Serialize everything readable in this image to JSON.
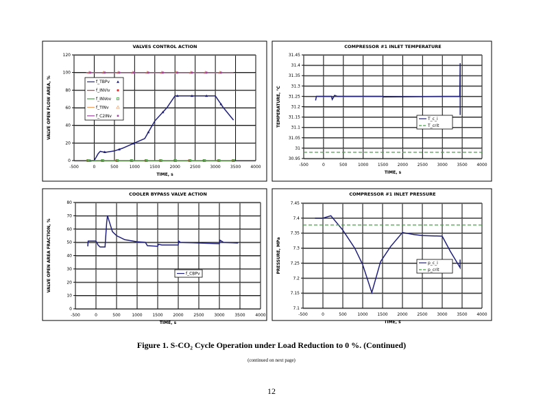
{
  "chart_data": [
    {
      "type": "line",
      "title": "VALVES CONTROL ACTION",
      "xlabel": "TIME, s",
      "ylabel": "VALVE OPEN FLOW AREA, %",
      "xlim": [
        -500,
        4000
      ],
      "xticks": [
        -500,
        0,
        500,
        1000,
        1500,
        2000,
        2500,
        3000,
        3500,
        4000
      ],
      "ylim": [
        0,
        120
      ],
      "yticks": [
        0,
        20,
        40,
        60,
        80,
        100,
        120
      ],
      "grid": true,
      "legend": "left",
      "series": [
        {
          "name": "f_TBPv",
          "color": "#1f1f7a",
          "marker": "triangle",
          "x": [
            -100,
            0,
            100,
            150,
            200,
            300,
            500,
            700,
            1000,
            1250,
            1400,
            1500,
            1800,
            2000,
            2100,
            3000,
            3200,
            3450
          ],
          "y": [
            0,
            0,
            8,
            10.5,
            10,
            9.5,
            11,
            14,
            20,
            25,
            37,
            45,
            60,
            73.5,
            73.5,
            73.5,
            60,
            46
          ]
        },
        {
          "name": "f_INViv",
          "color": "#e03030",
          "marker": "star",
          "x": [
            -200,
            3450
          ],
          "y": [
            0,
            0
          ]
        },
        {
          "name": "f_INVov",
          "color": "#40a040",
          "marker": "square",
          "x": [
            -200,
            3450
          ],
          "y": [
            0,
            0
          ]
        },
        {
          "name": "f_TINv",
          "color": "#f0a060",
          "marker": "triangle-open",
          "x": [
            -200,
            3450
          ],
          "y": [
            100,
            100
          ]
        },
        {
          "name": "f_C2INv",
          "color": "#a040a0",
          "marker": "dot",
          "x": [
            -200,
            3450
          ],
          "y": [
            100,
            100
          ]
        }
      ]
    },
    {
      "type": "line",
      "title": "COMPRESSOR #1 INLET TEMPERATURE",
      "xlabel": "TIME, s",
      "ylabel": "TEMPERATURE, °C",
      "xlim": [
        -500,
        4000
      ],
      "xticks": [
        -500,
        0,
        500,
        1000,
        1500,
        2000,
        2500,
        3000,
        3500,
        4000
      ],
      "ylim": [
        30.95,
        31.45
      ],
      "yticks": [
        30.95,
        31,
        31.05,
        31.1,
        31.15,
        31.2,
        31.25,
        31.3,
        31.35,
        31.4,
        31.45
      ],
      "grid": true,
      "legend": "right",
      "series": [
        {
          "name": "T_c_i",
          "color": "#1f1f7a",
          "dash": false,
          "x": [
            -200,
            -180,
            200,
            220,
            280,
            350,
            1500,
            1510,
            3440,
            3450,
            3450
          ],
          "y": [
            31.23,
            31.25,
            31.25,
            31.235,
            31.255,
            31.25,
            31.25,
            31.247,
            31.25,
            31.41,
            31.16
          ]
        },
        {
          "name": "T_crit",
          "color": "#40a040",
          "dash": true,
          "x": [
            -500,
            4000
          ],
          "y": [
            30.98,
            30.98
          ]
        }
      ]
    },
    {
      "type": "line",
      "title": "COOLER BYPASS VALVE ACTION",
      "xlabel": "TIME, s",
      "ylabel": "VALVE OPEN AREA FRACTION, %",
      "xlim": [
        -500,
        4000
      ],
      "xticks": [
        -500,
        0,
        500,
        1000,
        1500,
        2000,
        2500,
        3000,
        3500,
        4000
      ],
      "ylim": [
        0,
        80
      ],
      "yticks": [
        0,
        10,
        20,
        30,
        40,
        50,
        60,
        70,
        80
      ],
      "grid": true,
      "legend": "center-right",
      "series": [
        {
          "name": "f_CBPv",
          "color": "#1f1f7a",
          "dash": false,
          "x": [
            -200,
            -190,
            0,
            50,
            100,
            220,
            260,
            280,
            300,
            400,
            500,
            700,
            1000,
            1200,
            1250,
            1500,
            1520,
            1600,
            2000,
            2010,
            2050,
            3000,
            3020,
            3100,
            3450
          ],
          "y": [
            47,
            51,
            51,
            48,
            46.5,
            46.5,
            65,
            70,
            68,
            58,
            55,
            52,
            50.5,
            50,
            47.5,
            47,
            48.5,
            48,
            48,
            51,
            50,
            49,
            51.5,
            50,
            49.5
          ]
        }
      ]
    },
    {
      "type": "line",
      "title": "COMPRESSOR #1 INLET PRESSURE",
      "xlabel": "TIME, s",
      "ylabel": "PRESSURE, MPa",
      "xlim": [
        -500,
        4000
      ],
      "xticks": [
        -500,
        0,
        500,
        1000,
        1500,
        2000,
        2500,
        3000,
        3500,
        4000
      ],
      "ylim": [
        7.1,
        7.45
      ],
      "yticks": [
        7.1,
        7.15,
        7.2,
        7.25,
        7.3,
        7.35,
        7.4,
        7.45
      ],
      "grid": true,
      "legend": "right",
      "series": [
        {
          "name": "p_c_i",
          "color": "#1f1f7a",
          "dash": false,
          "x": [
            -200,
            0,
            200,
            500,
            800,
            1000,
            1230,
            1450,
            1700,
            2000,
            2300,
            2500,
            3000,
            3200,
            3450,
            3450
          ],
          "y": [
            7.4,
            7.4,
            7.408,
            7.36,
            7.3,
            7.245,
            7.152,
            7.255,
            7.305,
            7.352,
            7.345,
            7.342,
            7.34,
            7.29,
            7.235,
            7.262
          ]
        },
        {
          "name": "p_crit",
          "color": "#40a040",
          "dash": true,
          "x": [
            -500,
            4000
          ],
          "y": [
            7.377,
            7.377
          ]
        }
      ]
    }
  ],
  "caption": "Figure 1. S-CO₂ Cycle Operation under Load Reduction to 0 %.  (Continued)",
  "continued_note": "(continued on next page)",
  "page_number": "12"
}
